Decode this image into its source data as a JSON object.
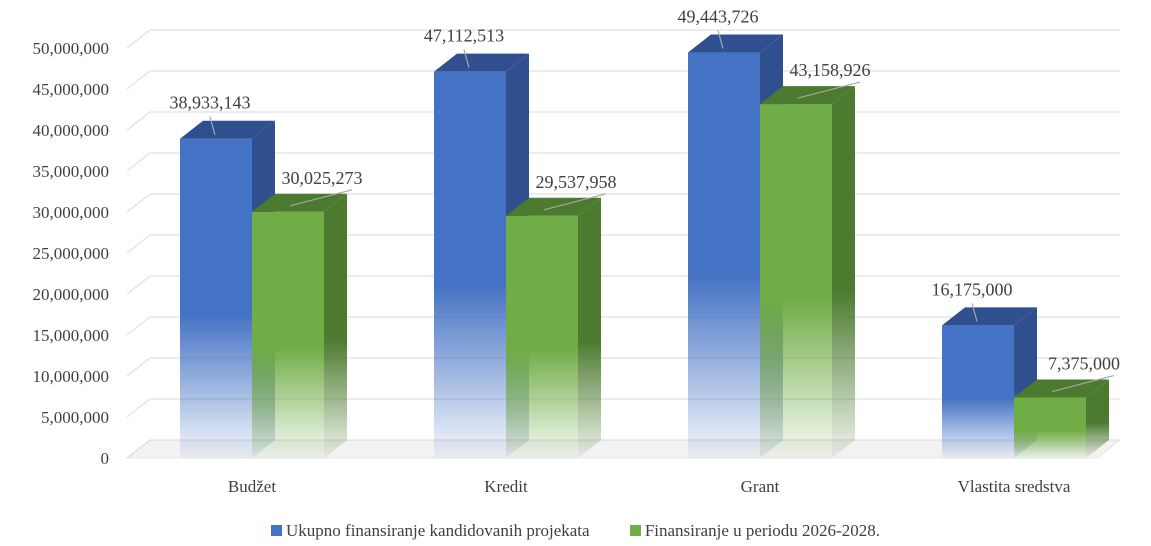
{
  "chart_data": {
    "type": "bar",
    "categories": [
      "Budžet",
      "Kredit",
      "Grant",
      "Vlastita sredstva"
    ],
    "series": [
      {
        "name": "Ukupno finansiranje kandidovanih projekata",
        "values": [
          38933143,
          47112513,
          49443726,
          16175000
        ],
        "color": "#4472C4",
        "labels": [
          "38,933,143",
          "47,112,513",
          "49,443,726",
          "16,175,000"
        ]
      },
      {
        "name": "Finansiranje u periodu 2026-2028.",
        "values": [
          30025273,
          29537958,
          43158926,
          7375000
        ],
        "color": "#70AD47",
        "labels": [
          "30,025,273",
          "29,537,958",
          "43,158,926",
          "7,375,000"
        ]
      }
    ],
    "y_ticks": [
      "0",
      "5,000,000",
      "10,000,000",
      "15,000,000",
      "20,000,000",
      "25,000,000",
      "30,000,000",
      "35,000,000",
      "40,000,000",
      "45,000,000",
      "50,000,000"
    ],
    "ylim": [
      0,
      50000000
    ],
    "style": "3d-clustered-column",
    "grid": true,
    "legend_position": "bottom"
  }
}
